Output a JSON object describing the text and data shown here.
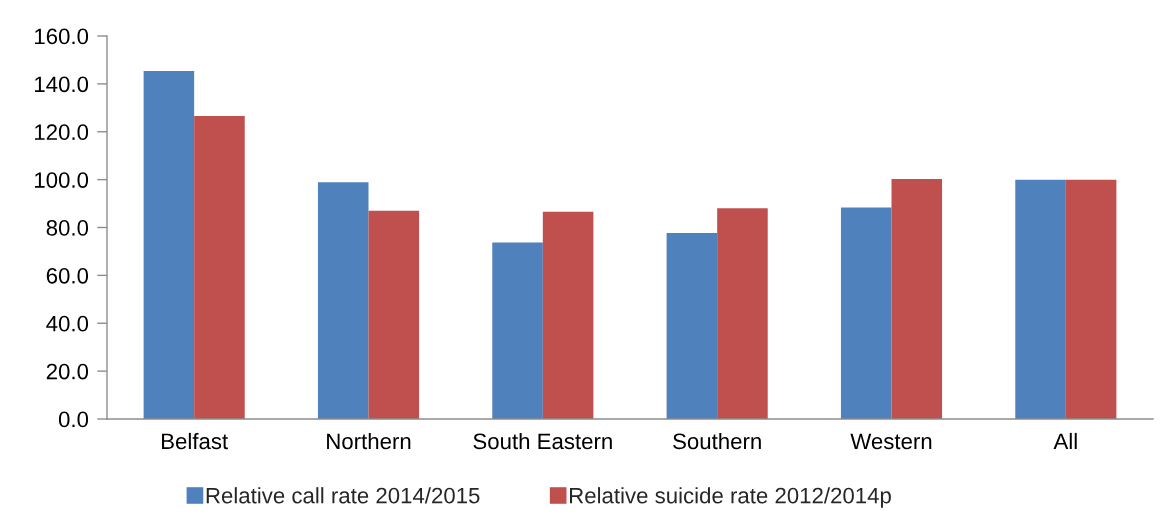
{
  "chart_data": {
    "type": "bar",
    "categories": [
      "Belfast",
      "Northern",
      "South Eastern",
      "Southern",
      "Western",
      "All"
    ],
    "series": [
      {
        "name": "Relative call rate 2014/2015",
        "color": "#4f81bd",
        "values": [
          145.4,
          98.9,
          73.7,
          77.7,
          88.4,
          100.0
        ]
      },
      {
        "name": "Relative suicide rate 2012/2014p",
        "color": "#c0504d",
        "values": [
          126.6,
          87.0,
          86.6,
          88.0,
          100.3,
          100.0
        ]
      }
    ],
    "ylim": [
      0,
      160
    ],
    "yticks": [
      {
        "value": 0,
        "label": "0.0"
      },
      {
        "value": 20,
        "label": "20.0"
      },
      {
        "value": 40,
        "label": "40.0"
      },
      {
        "value": 60,
        "label": "60.0"
      },
      {
        "value": 80,
        "label": "80.0"
      },
      {
        "value": 100,
        "label": "100.0"
      },
      {
        "value": 120,
        "label": "120.0"
      },
      {
        "value": 140,
        "label": "140.0"
      },
      {
        "value": 160,
        "label": "160.0"
      }
    ],
    "grid": false,
    "legend": "bottom"
  }
}
